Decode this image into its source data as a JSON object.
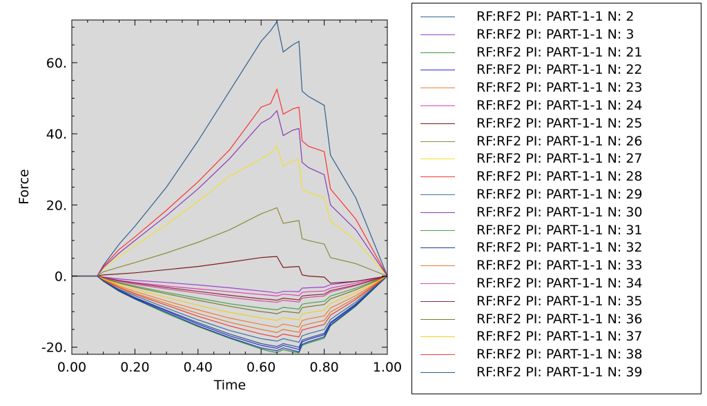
{
  "chart_data": {
    "type": "line",
    "xlabel": "Time",
    "ylabel": "Force",
    "xlim": [
      0.0,
      1.0
    ],
    "ylim": [
      -22.0,
      72.0
    ],
    "x_ticks": [
      {
        "value": 0.0,
        "label": "0.00"
      },
      {
        "value": 0.2,
        "label": "0.20"
      },
      {
        "value": 0.4,
        "label": "0.40"
      },
      {
        "value": 0.6,
        "label": "0.60"
      },
      {
        "value": 0.8,
        "label": "0.80"
      },
      {
        "value": 1.0,
        "label": "1.00"
      }
    ],
    "y_ticks": [
      {
        "value": -20,
        "label": "-20."
      },
      {
        "value": 0,
        "label": "0."
      },
      {
        "value": 20,
        "label": "20."
      },
      {
        "value": 40,
        "label": "40."
      },
      {
        "value": 60,
        "label": "60."
      }
    ],
    "background": "#d9d9d9",
    "grid": false,
    "legend_position": "right",
    "x": [
      0.0,
      0.08,
      0.1,
      0.15,
      0.2,
      0.3,
      0.4,
      0.5,
      0.6,
      0.63,
      0.65,
      0.67,
      0.7,
      0.72,
      0.73,
      0.75,
      0.8,
      0.82,
      0.9,
      1.0
    ],
    "series": [
      {
        "name": "RF:RF2 PI: PART-1-1 N: 2",
        "color": "#2f5f8f",
        "values": [
          0,
          0,
          3,
          9,
          14,
          25,
          38,
          52,
          66,
          69,
          71.5,
          63,
          65,
          66,
          52,
          50.5,
          48,
          34,
          22,
          0
        ]
      },
      {
        "name": "RF:RF2 PI: PART-1-1 N: 3",
        "color": "#a040d0",
        "values": [
          0,
          0,
          -0.3,
          -0.8,
          -1.2,
          -1.8,
          -2.5,
          -3.3,
          -4.2,
          -4.5,
          -4.8,
          -4.3,
          -4.3,
          -4.4,
          -3.4,
          -3.3,
          -3.1,
          -2.4,
          -1.5,
          0
        ]
      },
      {
        "name": "RF:RF2 PI: PART-1-1 N: 21",
        "color": "#3a9a3a",
        "values": [
          0,
          0,
          -1.5,
          -4.3,
          -6.5,
          -10.5,
          -14.2,
          -17.5,
          -20.5,
          -21.2,
          -21.5,
          -20.7,
          -21.3,
          -21.6,
          -19.5,
          -18.8,
          -17.5,
          -14,
          -8.5,
          0
        ]
      },
      {
        "name": "RF:RF2 PI: PART-1-1 N: 22",
        "color": "#2b2bd0",
        "values": [
          0,
          0,
          -1.2,
          -4,
          -6.2,
          -9.8,
          -13.5,
          -16.8,
          -19.5,
          -20,
          -20.3,
          -19.5,
          -20.2,
          -20.6,
          -18.5,
          -17.8,
          -16.5,
          -13.3,
          -8,
          0
        ]
      },
      {
        "name": "RF:RF2 PI: PART-1-1 N: 23",
        "color": "#f07f30",
        "values": [
          0,
          0,
          -0.9,
          -2.8,
          -4.3,
          -7,
          -9.5,
          -11.8,
          -13.6,
          -14.1,
          -14.4,
          -13.5,
          -14,
          -14.3,
          -12.5,
          -12,
          -11.2,
          -9,
          -5.5,
          0
        ]
      },
      {
        "name": "RF:RF2 PI: PART-1-1 N: 24",
        "color": "#e040b0",
        "values": [
          0,
          0,
          -0.4,
          -1.2,
          -1.8,
          -2.8,
          -3.6,
          -4.4,
          -5.2,
          -5.4,
          -5.6,
          -5.1,
          -5.3,
          -5.5,
          -4.6,
          -4.4,
          -4.2,
          -3.4,
          -2,
          0
        ]
      },
      {
        "name": "RF:RF2 PI: PART-1-1 N: 25",
        "color": "#7a1a1a",
        "values": [
          0,
          0,
          0.3,
          0.6,
          0.9,
          1.8,
          2.7,
          3.9,
          5.2,
          5.4,
          5.5,
          2.4,
          2.6,
          2.7,
          0.3,
          0,
          -0.3,
          -2,
          -1.5,
          0
        ]
      },
      {
        "name": "RF:RF2 PI: PART-1-1 N: 26",
        "color": "#8a8a3a",
        "values": [
          0,
          0,
          1.2,
          2.5,
          3.8,
          6.5,
          9.5,
          13,
          17.5,
          18.5,
          19.2,
          14.8,
          15.3,
          15.6,
          10.5,
          10,
          9,
          5.2,
          3.5,
          0
        ]
      },
      {
        "name": "RF:RF2 PI: PART-1-1 N: 27",
        "color": "#f0e030",
        "values": [
          0,
          0,
          2,
          5.5,
          8.5,
          14.5,
          21,
          28,
          33,
          34.5,
          36.5,
          31,
          32.4,
          32.8,
          24.5,
          23.5,
          22,
          15.5,
          10,
          0
        ]
      },
      {
        "name": "RF:RF2 PI: PART-1-1 N: 28",
        "color": "#ff3030",
        "values": [
          0,
          0,
          2.7,
          7.5,
          11,
          18.5,
          26.5,
          35.5,
          47.5,
          48.5,
          52.5,
          45.5,
          47,
          47.5,
          38,
          36.5,
          35,
          24.5,
          16,
          0
        ]
      },
      {
        "name": "RF:RF2 PI: PART-1-1 N: 29",
        "color": "#3a70a0",
        "values": [
          0,
          0,
          -1.3,
          -3.7,
          -5.5,
          -9,
          -12.3,
          -15.3,
          -17.6,
          -18,
          -18.3,
          -17.6,
          -18.2,
          -18.6,
          -16.8,
          -16.2,
          -15,
          -12.2,
          -7.3,
          0
        ]
      },
      {
        "name": "RF:RF2 PI: PART-1-1 N: 30",
        "color": "#8a3ab0",
        "values": [
          0,
          0,
          2.4,
          6.5,
          10,
          17,
          24.5,
          33,
          43,
          44.5,
          46.5,
          39.5,
          41,
          41.5,
          32,
          30.5,
          28.5,
          20,
          13,
          0
        ]
      },
      {
        "name": "RF:RF2 PI: PART-1-1 N: 31",
        "color": "#4aa04a",
        "values": [
          0,
          0,
          -0.6,
          -1.8,
          -2.8,
          -4.6,
          -6.2,
          -7.8,
          -9,
          -9.3,
          -9.5,
          -8.8,
          -9.1,
          -9.3,
          -7.9,
          -7.6,
          -7.1,
          -5.6,
          -3.4,
          0
        ]
      },
      {
        "name": "RF:RF2 PI: PART-1-1 N: 32",
        "color": "#1a3ab0",
        "values": [
          0,
          0,
          -1.4,
          -4.2,
          -6.4,
          -10.2,
          -14,
          -17.3,
          -20.2,
          -20.7,
          -21,
          -20.2,
          -20.9,
          -21.3,
          -19.2,
          -18.5,
          -17.1,
          -13.8,
          -8.3,
          0
        ]
      },
      {
        "name": "RF:RF2 PI: PART-1-1 N: 33",
        "color": "#e07a30",
        "values": [
          0,
          0,
          -1,
          -3.1,
          -4.8,
          -7.7,
          -10.5,
          -13,
          -15,
          -15.5,
          -15.9,
          -15,
          -15.5,
          -15.8,
          -14,
          -13.5,
          -12.5,
          -10.1,
          -6.1,
          0
        ]
      },
      {
        "name": "RF:RF2 PI: PART-1-1 N: 34",
        "color": "#d050a0",
        "values": [
          0,
          0,
          -0.5,
          -1.5,
          -2.3,
          -3.6,
          -4.8,
          -6,
          -7,
          -7.2,
          -7.4,
          -6.8,
          -7.1,
          -7.3,
          -6.2,
          -6,
          -5.6,
          -4.5,
          -2.7,
          0
        ]
      },
      {
        "name": "RF:RF2 PI: PART-1-1 N: 35",
        "color": "#8a2a3a",
        "values": [
          0,
          0,
          -0.4,
          -1.3,
          -2,
          -3.2,
          -4.3,
          -5.4,
          -6.4,
          -6.6,
          -6.8,
          -6.2,
          -6.5,
          -6.7,
          -5.6,
          -5.4,
          -5.1,
          -4.1,
          -2.5,
          0
        ]
      },
      {
        "name": "RF:RF2 PI: PART-1-1 N: 36",
        "color": "#7a7a2a",
        "values": [
          0,
          0,
          -0.7,
          -2,
          -3.1,
          -5,
          -6.8,
          -8.5,
          -10,
          -10.3,
          -10.6,
          -9.9,
          -10.2,
          -10.4,
          -8.9,
          -8.6,
          -8,
          -6.4,
          -3.9,
          0
        ]
      },
      {
        "name": "RF:RF2 PI: PART-1-1 N: 37",
        "color": "#f0d020",
        "values": [
          0,
          0,
          -0.8,
          -2.4,
          -3.7,
          -6,
          -8.2,
          -10.2,
          -11.8,
          -12.2,
          -12.5,
          -11.7,
          -12.1,
          -12.3,
          -10.7,
          -10.3,
          -9.6,
          -7.7,
          -4.7,
          0
        ]
      },
      {
        "name": "RF:RF2 PI: PART-1-1 N: 38",
        "color": "#f03a3a",
        "values": [
          0,
          0,
          -1.1,
          -3.3,
          -5.1,
          -8.2,
          -11.3,
          -14,
          -16.3,
          -16.8,
          -17.2,
          -16.3,
          -16.8,
          -17.1,
          -15.2,
          -14.7,
          -13.6,
          -11,
          -6.6,
          0
        ]
      },
      {
        "name": "RF:RF2 PI: PART-1-1 N: 39",
        "color": "#2a5a8a",
        "values": [
          0,
          0,
          -1.3,
          -3.9,
          -6,
          -9.6,
          -13.1,
          -16.3,
          -19,
          -19.5,
          -19.8,
          -19,
          -19.6,
          -20,
          -18,
          -17.4,
          -16.1,
          -13,
          -7.8,
          0
        ]
      }
    ]
  }
}
